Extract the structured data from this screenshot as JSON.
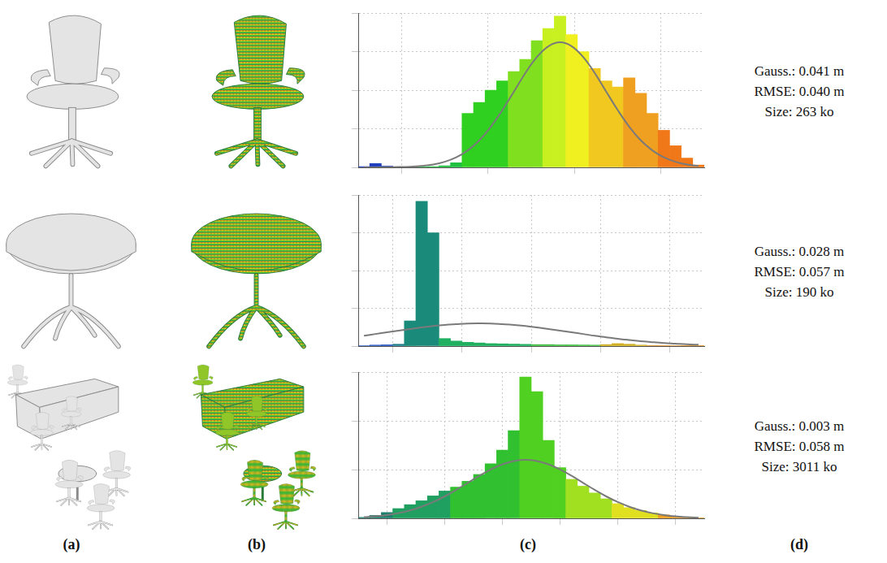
{
  "panel_labels": [
    "(a)",
    "(b)",
    "(c)",
    "(d)"
  ],
  "chart_data": [
    {
      "type": "histogram",
      "bins": [
        -0.03,
        -0.026,
        -0.022,
        -0.018,
        -0.014,
        -0.01,
        -0.006,
        -0.002,
        0.002,
        0.006,
        0.01,
        0.014,
        0.018,
        0.022,
        0.026,
        0.03,
        0.034,
        0.038,
        0.042,
        0.046,
        0.05,
        0.054,
        0.058,
        0.062,
        0.066,
        0.07,
        0.074,
        0.078,
        0.082,
        0.086,
        0.09
      ],
      "values": [
        5,
        25,
        8,
        3,
        2,
        2,
        5,
        10,
        30,
        350,
        420,
        500,
        560,
        620,
        700,
        820,
        900,
        980,
        860,
        750,
        640,
        560,
        520,
        580,
        480,
        350,
        240,
        140,
        60,
        15
      ],
      "gaussian": [
        0,
        0,
        1,
        2,
        4,
        9,
        18,
        36,
        65,
        110,
        175,
        263,
        371,
        491,
        612,
        715,
        785,
        810,
        785,
        715,
        612,
        491,
        371,
        263,
        175,
        110,
        65,
        36,
        18,
        9
      ],
      "colors": [
        "#2040c0",
        "#2040c0",
        "#2040c0",
        "#2040c0",
        "#20c040",
        "#20c040",
        "#20c040",
        "#20c040",
        "#20c040",
        "#30d020",
        "#30d020",
        "#30d020",
        "#30d020",
        "#80e020",
        "#80e020",
        "#80e020",
        "#c8f020",
        "#c8f020",
        "#f0f020",
        "#f0f020",
        "#f0c820",
        "#f0c820",
        "#f0c820",
        "#f0a020",
        "#f0a020",
        "#f0a020",
        "#f07818",
        "#f07818",
        "#f07818",
        "#f07818"
      ],
      "xlim": [
        -0.03,
        0.09
      ],
      "xticks": [
        -0.03,
        0,
        0.03,
        0.06,
        0.09
      ],
      "ylim": [
        0,
        1000
      ],
      "yticks": [
        0,
        250,
        500,
        750,
        1000
      ],
      "grid": true,
      "tick_labels": false,
      "annotations": [
        "Gauss.: 0.041 m",
        "RMSE: 0.040 m",
        "Size: 263 ko"
      ]
    },
    {
      "type": "histogram",
      "bins": [
        -0.08,
        -0.07,
        -0.06,
        -0.05,
        -0.04,
        -0.03,
        -0.02,
        -0.01,
        0,
        0.01,
        0.02,
        0.03,
        0.04,
        0.05,
        0.06,
        0.07,
        0.08,
        0.09,
        0.1,
        0.11,
        0.12,
        0.13,
        0.14,
        0.15,
        0.16,
        0.17,
        0.18,
        0.19,
        0.2,
        0.21,
        0.22
      ],
      "values": [
        3,
        8,
        10,
        15,
        200,
        1150,
        900,
        60,
        40,
        30,
        25,
        20,
        18,
        16,
        14,
        12,
        12,
        10,
        10,
        9,
        8,
        12,
        20,
        15,
        8,
        5,
        4,
        3,
        2,
        1
      ],
      "gaussian": [
        82,
        96,
        109,
        123,
        136,
        148,
        159,
        168,
        174,
        179,
        180,
        179,
        174,
        168,
        159,
        148,
        136,
        123,
        109,
        96,
        82,
        70,
        58,
        48,
        39,
        31,
        24,
        19,
        14,
        11
      ],
      "colors": [
        "#2050c0",
        "#2050c0",
        "#2050c0",
        "#208090",
        "#1a8a7a",
        "#1a8a7a",
        "#1a8a7a",
        "#20b060",
        "#20b060",
        "#20b060",
        "#20b060",
        "#20b060",
        "#20b060",
        "#20b060",
        "#20b060",
        "#40c040",
        "#40c040",
        "#40c040",
        "#40c040",
        "#40c040",
        "#40c040",
        "#d0b020",
        "#d0b020",
        "#d0b020",
        "#d0b020",
        "#e09020",
        "#e09020",
        "#e09020",
        "#e09020",
        "#e09020"
      ],
      "xlim": [
        -0.08,
        0.22
      ],
      "xticks": [
        -0.08,
        -0.02,
        0.04,
        0.1,
        0.16,
        0.22
      ],
      "ylim": [
        0,
        1200
      ],
      "yticks": [
        0,
        300,
        600,
        900,
        1200
      ],
      "grid": true,
      "tick_labels": false,
      "annotations": [
        "Gauss.: 0.028 m",
        "RMSE: 0.057 m",
        "Size: 190 ko"
      ]
    },
    {
      "type": "histogram",
      "bins": [
        -0.15,
        -0.14,
        -0.13,
        -0.12,
        -0.11,
        -0.1,
        -0.09,
        -0.08,
        -0.07,
        -0.06,
        -0.05,
        -0.04,
        -0.03,
        -0.02,
        -0.01,
        0,
        0.01,
        0.02,
        0.03,
        0.04,
        0.05,
        0.06,
        0.07,
        0.08,
        0.09,
        0.1,
        0.11,
        0.12,
        0.13,
        0.14,
        0.15
      ],
      "values": [
        10,
        30,
        60,
        100,
        140,
        180,
        230,
        280,
        320,
        380,
        450,
        560,
        700,
        900,
        1450,
        1300,
        800,
        520,
        400,
        330,
        260,
        200,
        150,
        110,
        80,
        55,
        35,
        20,
        10,
        5
      ],
      "gaussian": [
        12,
        20,
        34,
        53,
        81,
        119,
        167,
        225,
        292,
        364,
        436,
        501,
        554,
        588,
        600,
        588,
        554,
        501,
        436,
        364,
        292,
        225,
        167,
        119,
        81,
        53,
        34,
        20,
        12,
        7
      ],
      "colors": [
        "#208070",
        "#208070",
        "#208070",
        "#20a060",
        "#20a060",
        "#20a060",
        "#20a060",
        "#20a060",
        "#30c030",
        "#30c030",
        "#30c030",
        "#30c030",
        "#30c030",
        "#30c030",
        "#50d020",
        "#50d020",
        "#50d020",
        "#50d020",
        "#a0e020",
        "#a0e020",
        "#a0e020",
        "#a0e020",
        "#e0e020",
        "#e0e020",
        "#e0e020",
        "#e0e020",
        "#f0a020",
        "#f0a020",
        "#f0a020",
        "#f0a020"
      ],
      "xlim": [
        -0.15,
        0.15
      ],
      "xticks": [
        -0.15,
        -0.1,
        -0.05,
        0,
        0.05,
        0.1,
        0.15
      ],
      "ylim": [
        0,
        1500
      ],
      "yticks": [
        0,
        500,
        1000,
        1500
      ],
      "grid": true,
      "tick_labels": false,
      "annotations": [
        "Gauss.: 0.003 m",
        "RMSE: 0.058 m",
        "Size: 3011 ko"
      ]
    }
  ]
}
